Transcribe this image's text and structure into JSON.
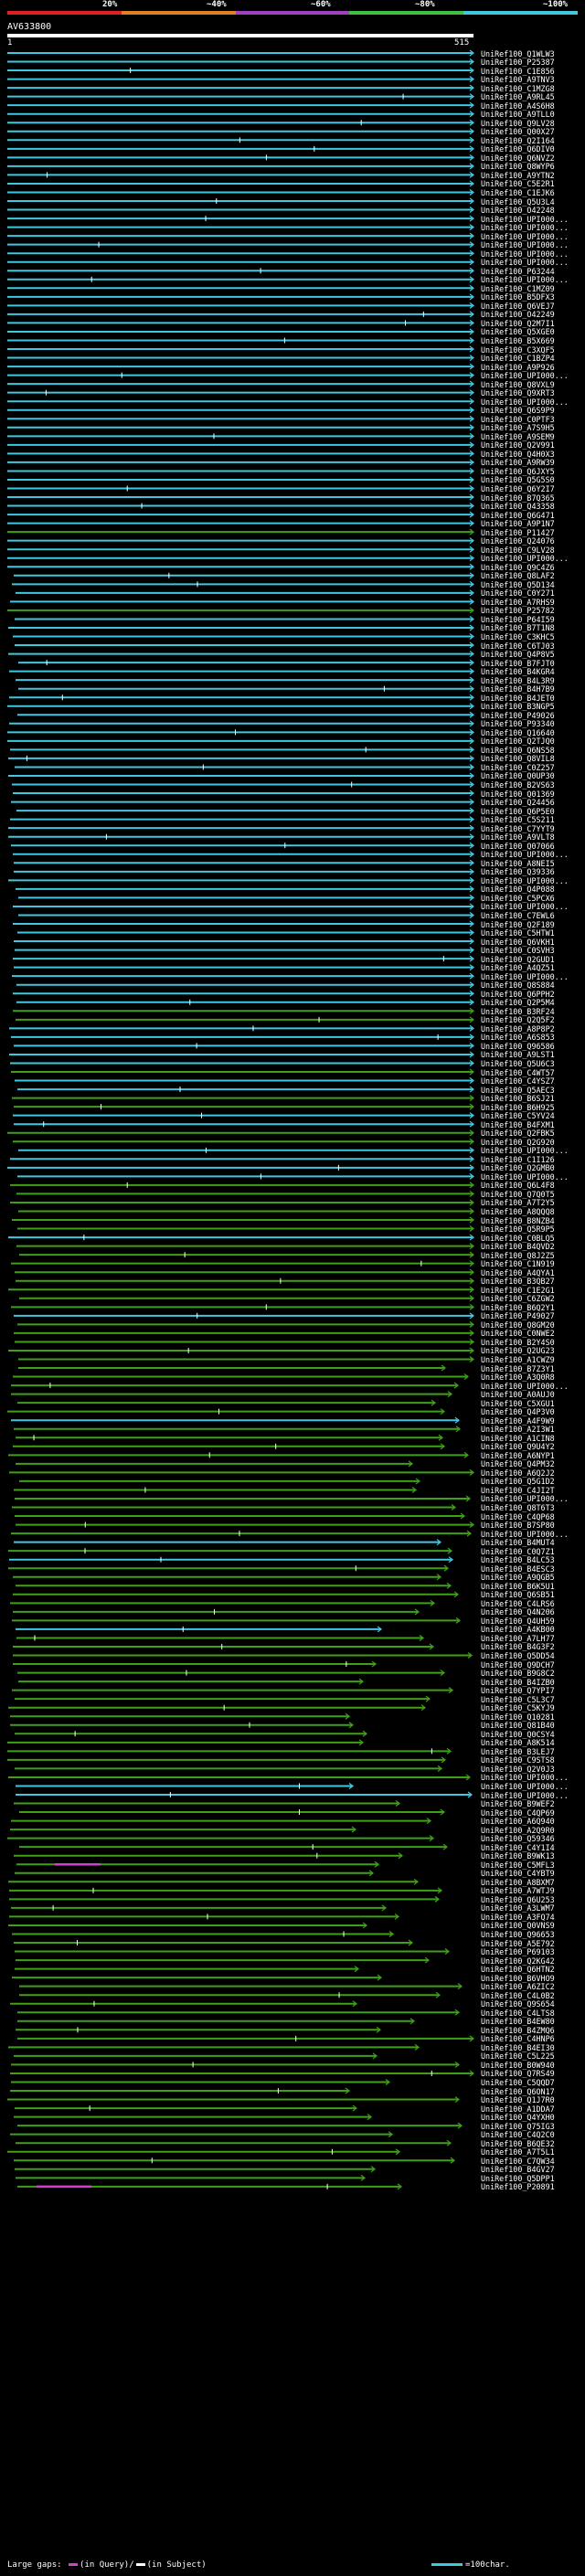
{
  "scale": {
    "labels": [
      "20%",
      "~40%",
      "~60%",
      "~80%",
      "~100%"
    ],
    "colors": [
      "#e02020",
      "#e08020",
      "#a040c0",
      "#40c040",
      "#40c8e0"
    ]
  },
  "query": {
    "id": "AV633800",
    "start": "1",
    "end": "515"
  },
  "legend": {
    "gaps_label": "Large gaps:",
    "in_query": "(in Query)",
    "separator": "/",
    "in_subject": "(in Subject)",
    "scale_label": "=100char."
  },
  "colors": {
    "cyan": "#3fc8e0",
    "green": "#3fa018",
    "magenta": "#d040d0",
    "white": "#ffffff",
    "background": "#000000"
  },
  "hits": [
    {
      "id": "UniRef100_Q1WLW3",
      "cls": "c"
    },
    {
      "id": "UniRef100_P25387",
      "cls": "c"
    },
    {
      "id": "UniRef100_C1E856",
      "cls": "c"
    },
    {
      "id": "UniRef100_A9TNV3",
      "cls": "c"
    },
    {
      "id": "UniRef100_C1MZG8",
      "cls": "c"
    },
    {
      "id": "UniRef100_A9RL45",
      "cls": "c"
    },
    {
      "id": "UniRef100_A4S6H8",
      "cls": "c"
    },
    {
      "id": "UniRef100_A9TLL0",
      "cls": "c"
    },
    {
      "id": "UniRef100_Q9LV28",
      "cls": "c"
    },
    {
      "id": "UniRef100_Q00X27",
      "cls": "c"
    },
    {
      "id": "UniRef100_Q2I164",
      "cls": "c"
    },
    {
      "id": "UniRef100_Q6DIV0",
      "cls": "c"
    },
    {
      "id": "UniRef100_Q6NVZ2",
      "cls": "c"
    },
    {
      "id": "UniRef100_Q8WYP6",
      "cls": "c"
    },
    {
      "id": "UniRef100_A9YTN2",
      "cls": "c"
    },
    {
      "id": "UniRef100_C5E2R1",
      "cls": "c"
    },
    {
      "id": "UniRef100_C1EJK6",
      "cls": "c"
    },
    {
      "id": "UniRef100_Q5U3L4",
      "cls": "c"
    },
    {
      "id": "UniRef100_O42248",
      "cls": "c"
    },
    {
      "id": "UniRef100_UPI000...",
      "cls": "c"
    },
    {
      "id": "UniRef100_UPI000...",
      "cls": "c"
    },
    {
      "id": "UniRef100_UPI000...",
      "cls": "c"
    },
    {
      "id": "UniRef100_UPI000...",
      "cls": "c"
    },
    {
      "id": "UniRef100_UPI000...",
      "cls": "c"
    },
    {
      "id": "UniRef100_UPI000...",
      "cls": "c"
    },
    {
      "id": "UniRef100_P63244",
      "cls": "c"
    },
    {
      "id": "UniRef100_UPI000...",
      "cls": "c"
    },
    {
      "id": "UniRef100_C1MZ09",
      "cls": "c"
    },
    {
      "id": "UniRef100_B5DFX3",
      "cls": "c"
    },
    {
      "id": "UniRef100_Q6VEJ7",
      "cls": "c"
    },
    {
      "id": "UniRef100_O42249",
      "cls": "c"
    },
    {
      "id": "UniRef100_Q2M7I1",
      "cls": "c"
    },
    {
      "id": "UniRef100_Q5XGE0",
      "cls": "c"
    },
    {
      "id": "UniRef100_B5X669",
      "cls": "c"
    },
    {
      "id": "UniRef100_C3XQF5",
      "cls": "c"
    },
    {
      "id": "UniRef100_C1BZP4",
      "cls": "c"
    },
    {
      "id": "UniRef100_A9P926",
      "cls": "c"
    },
    {
      "id": "UniRef100_UPI000...",
      "cls": "c"
    },
    {
      "id": "UniRef100_Q8VXL9",
      "cls": "c"
    },
    {
      "id": "UniRef100_Q9XRT3",
      "cls": "c"
    },
    {
      "id": "UniRef100_UPI000...",
      "cls": "c"
    },
    {
      "id": "UniRef100_Q6S9P9",
      "cls": "c"
    },
    {
      "id": "UniRef100_C0PTF3",
      "cls": "c"
    },
    {
      "id": "UniRef100_A7S9H5",
      "cls": "c"
    },
    {
      "id": "UniRef100_A9SEM9",
      "cls": "c"
    },
    {
      "id": "UniRef100_Q2V991",
      "cls": "c"
    },
    {
      "id": "UniRef100_Q4H0X3",
      "cls": "c"
    },
    {
      "id": "UniRef100_A9RW39",
      "cls": "c"
    },
    {
      "id": "UniRef100_Q6JXY5",
      "cls": "c"
    },
    {
      "id": "UniRef100_Q5G5S0",
      "cls": "c"
    },
    {
      "id": "UniRef100_Q6Y2I7",
      "cls": "c"
    },
    {
      "id": "UniRef100_B7Q365",
      "cls": "c"
    },
    {
      "id": "UniRef100_Q43358",
      "cls": "c"
    },
    {
      "id": "UniRef100_Q6G471",
      "cls": "c"
    },
    {
      "id": "UniRef100_A9P1N7",
      "cls": "c"
    },
    {
      "id": "UniRef100_P11427",
      "cls": "g"
    },
    {
      "id": "UniRef100_Q24076",
      "cls": "c"
    },
    {
      "id": "UniRef100_C9LV28",
      "cls": "c"
    },
    {
      "id": "UniRef100_UPI000...",
      "cls": "c"
    },
    {
      "id": "UniRef100_Q9C4Z6",
      "cls": "c"
    },
    {
      "id": "UniRef100_Q8LAF2",
      "cls": "c"
    },
    {
      "id": "UniRef100_Q5D134",
      "cls": "c"
    },
    {
      "id": "UniRef100_C0Y271",
      "cls": "c"
    },
    {
      "id": "UniRef100_A7RHS9",
      "cls": "c"
    },
    {
      "id": "UniRef100_P25782",
      "cls": "g"
    },
    {
      "id": "UniRef100_P64I59",
      "cls": "c"
    },
    {
      "id": "UniRef100_B7T1N8",
      "cls": "c"
    },
    {
      "id": "UniRef100_C3KHC5",
      "cls": "c"
    },
    {
      "id": "UniRef100_C6TJ03",
      "cls": "c"
    },
    {
      "id": "UniRef100_Q4P8V5",
      "cls": "c"
    },
    {
      "id": "UniRef100_B7FJT0",
      "cls": "c"
    },
    {
      "id": "UniRef100_B4KGR4",
      "cls": "c"
    },
    {
      "id": "UniRef100_B4L3R9",
      "cls": "c"
    },
    {
      "id": "UniRef100_B4H7B9",
      "cls": "c"
    },
    {
      "id": "UniRef100_B4JET0",
      "cls": "c"
    },
    {
      "id": "UniRef100_B3NGP5",
      "cls": "c"
    },
    {
      "id": "UniRef100_P49026",
      "cls": "c"
    },
    {
      "id": "UniRef100_P93340",
      "cls": "c"
    },
    {
      "id": "UniRef100_Q16640",
      "cls": "c"
    },
    {
      "id": "UniRef100_Q2TJQ0",
      "cls": "c"
    },
    {
      "id": "UniRef100_Q6NS58",
      "cls": "c"
    },
    {
      "id": "UniRef100_Q8VIL8",
      "cls": "c"
    },
    {
      "id": "UniRef100_C0Z257",
      "cls": "c"
    },
    {
      "id": "UniRef100_Q0UP30",
      "cls": "c"
    },
    {
      "id": "UniRef100_B2VS63",
      "cls": "c"
    },
    {
      "id": "UniRef100_Q01369",
      "cls": "c"
    },
    {
      "id": "UniRef100_Q24456",
      "cls": "c"
    },
    {
      "id": "UniRef100_Q6P5E0",
      "cls": "c"
    },
    {
      "id": "UniRef100_C5S211",
      "cls": "c"
    },
    {
      "id": "UniRef100_C7YYT9",
      "cls": "c"
    },
    {
      "id": "UniRef100_A9VLT8",
      "cls": "c"
    },
    {
      "id": "UniRef100_Q07066",
      "cls": "c"
    },
    {
      "id": "UniRef100_UPI000...",
      "cls": "c"
    },
    {
      "id": "UniRef100_A8NEI5",
      "cls": "c"
    },
    {
      "id": "UniRef100_Q39336",
      "cls": "c"
    },
    {
      "id": "UniRef100_UPI000...",
      "cls": "c"
    },
    {
      "id": "UniRef100_Q4P088",
      "cls": "c"
    },
    {
      "id": "UniRef100_C5PCX6",
      "cls": "c"
    },
    {
      "id": "UniRef100_UPI000...",
      "cls": "c"
    },
    {
      "id": "UniRef100_C7EWL6",
      "cls": "c"
    },
    {
      "id": "UniRef100_Q2F189",
      "cls": "c"
    },
    {
      "id": "UniRef100_C5HTW1",
      "cls": "c"
    },
    {
      "id": "UniRef100_Q6VKH1",
      "cls": "c"
    },
    {
      "id": "UniRef100_C0SVH3",
      "cls": "c"
    },
    {
      "id": "UniRef100_Q2GUD1",
      "cls": "c"
    },
    {
      "id": "UniRef100_A4QZ51",
      "cls": "c"
    },
    {
      "id": "UniRef100_UPI000...",
      "cls": "c"
    },
    {
      "id": "UniRef100_Q8S884",
      "cls": "c"
    },
    {
      "id": "UniRef100_Q6PPH2",
      "cls": "c"
    },
    {
      "id": "UniRef100_Q2P5M4",
      "cls": "c"
    },
    {
      "id": "UniRef100_B3RF24",
      "cls": "g"
    },
    {
      "id": "UniRef100_Q2Q5F2",
      "cls": "g"
    },
    {
      "id": "UniRef100_A8P8P2",
      "cls": "c"
    },
    {
      "id": "UniRef100_A6S853",
      "cls": "c"
    },
    {
      "id": "UniRef100_Q96586",
      "cls": "c"
    },
    {
      "id": "UniRef100_A9LST1",
      "cls": "c"
    },
    {
      "id": "UniRef100_Q5U6C3",
      "cls": "c"
    },
    {
      "id": "UniRef100_C4WT57",
      "cls": "g"
    },
    {
      "id": "UniRef100_C4YSZ7",
      "cls": "c"
    },
    {
      "id": "UniRef100_Q5AEC3",
      "cls": "c"
    },
    {
      "id": "UniRef100_B6SJ21",
      "cls": "g"
    },
    {
      "id": "UniRef100_B6H925",
      "cls": "g"
    },
    {
      "id": "UniRef100_C5YV24",
      "cls": "c"
    },
    {
      "id": "UniRef100_B4FXM1",
      "cls": "c"
    },
    {
      "id": "UniRef100_Q2FBK5",
      "cls": "g"
    },
    {
      "id": "UniRef100_Q2G920",
      "cls": "g"
    },
    {
      "id": "UniRef100_UPI000...",
      "cls": "c"
    },
    {
      "id": "UniRef100_C1I126",
      "cls": "c"
    },
    {
      "id": "UniRef100_Q2GMB0",
      "cls": "c"
    },
    {
      "id": "UniRef100_UPI000...",
      "cls": "c"
    },
    {
      "id": "UniRef100_Q6L4F8",
      "cls": "g"
    },
    {
      "id": "UniRef100_Q7Q0T5",
      "cls": "g"
    },
    {
      "id": "UniRef100_A7T2Y5",
      "cls": "g"
    },
    {
      "id": "UniRef100_A8QQQ8",
      "cls": "g"
    },
    {
      "id": "UniRef100_B8NZB4",
      "cls": "g"
    },
    {
      "id": "UniRef100_Q5R9P5",
      "cls": "g"
    },
    {
      "id": "UniRef100_C0BLQ5",
      "cls": "c"
    },
    {
      "id": "UniRef100_B4QVD2",
      "cls": "g"
    },
    {
      "id": "UniRef100_Q8J2Z5",
      "cls": "g"
    },
    {
      "id": "UniRef100_C1N919",
      "cls": "g"
    },
    {
      "id": "UniRef100_A4QYA1",
      "cls": "g"
    },
    {
      "id": "UniRef100_B3QB27",
      "cls": "g"
    },
    {
      "id": "UniRef100_C1E2G1",
      "cls": "g"
    },
    {
      "id": "UniRef100_C6ZGW2",
      "cls": "g"
    },
    {
      "id": "UniRef100_B6Q2Y1",
      "cls": "g"
    },
    {
      "id": "UniRef100_P49027",
      "cls": "c"
    },
    {
      "id": "UniRef100_Q8GM20",
      "cls": "g"
    },
    {
      "id": "UniRef100_C0NWE2",
      "cls": "g"
    },
    {
      "id": "UniRef100_B2Y4S0",
      "cls": "g"
    },
    {
      "id": "UniRef100_Q2UG23",
      "cls": "g"
    },
    {
      "id": "UniRef100_A1CWZ9",
      "cls": "g"
    },
    {
      "id": "UniRef100_B7Z3Y1",
      "cls": "g"
    },
    {
      "id": "UniRef100_A3Q0R8",
      "cls": "g"
    },
    {
      "id": "UniRef100_UPI000...",
      "cls": "g"
    },
    {
      "id": "UniRef100_A0AUJ0",
      "cls": "g"
    },
    {
      "id": "UniRef100_C5XGU1",
      "cls": "g"
    },
    {
      "id": "UniRef100_Q4P3V0",
      "cls": "g"
    },
    {
      "id": "UniRef100_A4F9W9",
      "cls": "c"
    },
    {
      "id": "UniRef100_A2I3W1",
      "cls": "g"
    },
    {
      "id": "UniRef100_A1CIN8",
      "cls": "g"
    },
    {
      "id": "UniRef100_Q9U4Y2",
      "cls": "g"
    },
    {
      "id": "UniRef100_A6NYP1",
      "cls": "g"
    },
    {
      "id": "UniRef100_Q4PM32",
      "cls": "g"
    },
    {
      "id": "UniRef100_A6Q2J2",
      "cls": "g"
    },
    {
      "id": "UniRef100_Q5G1D2",
      "cls": "g"
    },
    {
      "id": "UniRef100_C4JI2T",
      "cls": "g"
    },
    {
      "id": "UniRef100_UPI000...",
      "cls": "g"
    },
    {
      "id": "UniRef100_Q8T6T3",
      "cls": "g"
    },
    {
      "id": "UniRef100_C4QP68",
      "cls": "g"
    },
    {
      "id": "UniRef100_B7SP80",
      "cls": "g"
    },
    {
      "id": "UniRef100_UPI000...",
      "cls": "g"
    },
    {
      "id": "UniRef100_B4MUT4",
      "cls": "c"
    },
    {
      "id": "UniRef100_C0Q7Z1",
      "cls": "g"
    },
    {
      "id": "UniRef100_B4LC53",
      "cls": "c"
    },
    {
      "id": "UniRef100_B4ESC3",
      "cls": "g"
    },
    {
      "id": "UniRef100_A9QGB5",
      "cls": "g"
    },
    {
      "id": "UniRef100_B6K5U1",
      "cls": "g"
    },
    {
      "id": "UniRef100_Q6SB51",
      "cls": "g"
    },
    {
      "id": "UniRef100_C4LRS6",
      "cls": "g"
    },
    {
      "id": "UniRef100_Q4N206",
      "cls": "g"
    },
    {
      "id": "UniRef100_Q4UH59",
      "cls": "g"
    },
    {
      "id": "UniRef100_A4KB00",
      "cls": "c"
    },
    {
      "id": "UniRef100_A7LH77",
      "cls": "g"
    },
    {
      "id": "UniRef100_B4G3F2",
      "cls": "g"
    },
    {
      "id": "UniRef100_Q5DD54",
      "cls": "g"
    },
    {
      "id": "UniRef100_Q9DCH7",
      "cls": "g"
    },
    {
      "id": "UniRef100_B9G8C2",
      "cls": "g"
    },
    {
      "id": "UniRef100_B4IZB0",
      "cls": "g"
    },
    {
      "id": "UniRef100_Q7YPI7",
      "cls": "g"
    },
    {
      "id": "UniRef100_C5L3C7",
      "cls": "g"
    },
    {
      "id": "UniRef100_C5KYJ9",
      "cls": "g"
    },
    {
      "id": "UniRef100_Q10281",
      "cls": "g"
    },
    {
      "id": "UniRef100_Q81B40",
      "cls": "g"
    },
    {
      "id": "UniRef100_Q0CSY4",
      "cls": "g"
    },
    {
      "id": "UniRef100_A8K514",
      "cls": "g"
    },
    {
      "id": "UniRef100_B3LEJ7",
      "cls": "g"
    },
    {
      "id": "UniRef100_C9STS8",
      "cls": "g"
    },
    {
      "id": "UniRef100_Q2V0J3",
      "cls": "g"
    },
    {
      "id": "UniRef100_UPI000...",
      "cls": "g"
    },
    {
      "id": "UniRef100_UPI000...",
      "cls": "c"
    },
    {
      "id": "UniRef100_UPI000...",
      "cls": "c"
    },
    {
      "id": "UniRef100_B9WEF2",
      "cls": "g"
    },
    {
      "id": "UniRef100_C4QP69",
      "cls": "g"
    },
    {
      "id": "UniRef100_A6Q940",
      "cls": "g"
    },
    {
      "id": "UniRef100_A2Q9R0",
      "cls": "g"
    },
    {
      "id": "UniRef100_Q59346",
      "cls": "g"
    },
    {
      "id": "UniRef100_C4Y1I4",
      "cls": "g"
    },
    {
      "id": "UniRef100_B9WK13",
      "cls": "g"
    },
    {
      "id": "UniRef100_C5MFL3",
      "cls": "g"
    },
    {
      "id": "UniRef100_C4YBT9",
      "cls": "g"
    },
    {
      "id": "UniRef100_A8BXM7",
      "cls": "g"
    },
    {
      "id": "UniRef100_A7WTJ9",
      "cls": "g"
    },
    {
      "id": "UniRef100_Q6U253",
      "cls": "g"
    },
    {
      "id": "UniRef100_A3LWM7",
      "cls": "g"
    },
    {
      "id": "UniRef100_A3FQ74",
      "cls": "g"
    },
    {
      "id": "UniRef100_Q0VNS9",
      "cls": "g"
    },
    {
      "id": "UniRef100_Q96653",
      "cls": "g"
    },
    {
      "id": "UniRef100_A5E792",
      "cls": "g"
    },
    {
      "id": "UniRef100_P69103",
      "cls": "g"
    },
    {
      "id": "UniRef100_Q2KG42",
      "cls": "g"
    },
    {
      "id": "UniRef100_Q6HTN2",
      "cls": "g"
    },
    {
      "id": "UniRef100_B6VHO9",
      "cls": "g"
    },
    {
      "id": "UniRef100_A6ZIC2",
      "cls": "g"
    },
    {
      "id": "UniRef100_C4L0B2",
      "cls": "g"
    },
    {
      "id": "UniRef100_Q9S654",
      "cls": "g"
    },
    {
      "id": "UniRef100_C4LTS8",
      "cls": "g"
    },
    {
      "id": "UniRef100_B4EW80",
      "cls": "g"
    },
    {
      "id": "UniRef100_B4ZMQ6",
      "cls": "g"
    },
    {
      "id": "UniRef100_C4HNP6",
      "cls": "g"
    },
    {
      "id": "UniRef100_B4EI30",
      "cls": "g"
    },
    {
      "id": "UniRef100_C5L225",
      "cls": "g"
    },
    {
      "id": "UniRef100_B0W940",
      "cls": "g"
    },
    {
      "id": "UniRef100_Q7RS49",
      "cls": "g"
    },
    {
      "id": "UniRef100_C5QQD7",
      "cls": "g"
    },
    {
      "id": "UniRef100_Q6ON17",
      "cls": "g"
    },
    {
      "id": "UniRef100_Q1J7R0",
      "cls": "g"
    },
    {
      "id": "UniRef100_A1DDA7",
      "cls": "g"
    },
    {
      "id": "UniRef100_Q4YXH0",
      "cls": "g"
    },
    {
      "id": "UniRef100_Q75IG3",
      "cls": "g"
    },
    {
      "id": "UniRef100_C4Q2C0",
      "cls": "g"
    },
    {
      "id": "UniRef100_B6QE32",
      "cls": "g"
    },
    {
      "id": "UniRef100_A7T5L1",
      "cls": "g"
    },
    {
      "id": "UniRef100_C7QW34",
      "cls": "g"
    },
    {
      "id": "UniRef100_B4GV27",
      "cls": "g"
    },
    {
      "id": "UniRef100_Q5DPP1",
      "cls": "g"
    },
    {
      "id": "UniRef100_P20891",
      "cls": "g"
    }
  ]
}
